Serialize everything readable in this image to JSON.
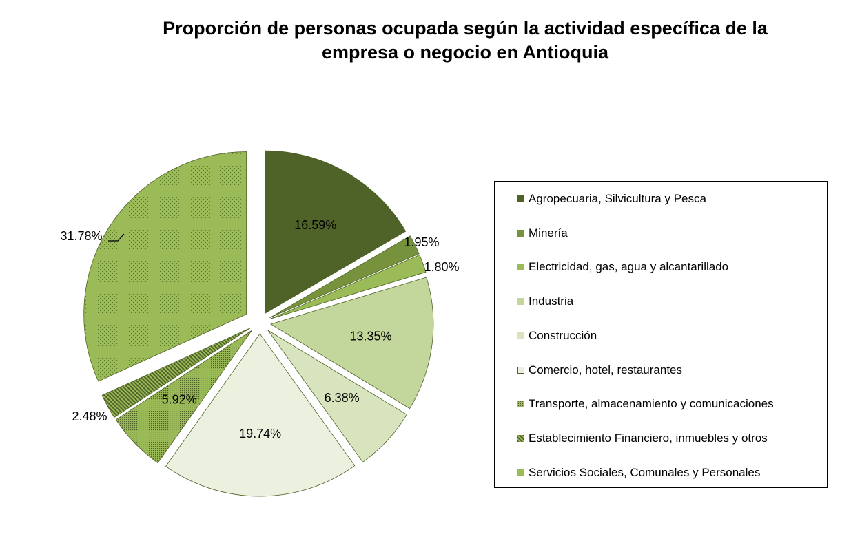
{
  "chart_data": {
    "type": "pie",
    "title": [
      "Proporción de personas ocupada según la actividad específica de la",
      "empresa o negocio en Antioquia"
    ],
    "legend_position": "right",
    "slices": [
      {
        "label": "Agropecuaria, Silvicultura y Pesca",
        "value": 16.59,
        "display": "16.59%",
        "color": "#4f6228",
        "pattern": "solid",
        "label_position": "inside"
      },
      {
        "label": "Minería",
        "value": 1.95,
        "display": "1.95%",
        "color": "#76923c",
        "pattern": "solid",
        "label_position": "outside"
      },
      {
        "label": "Electricidad, gas, agua y alcantarillado",
        "value": 1.8,
        "display": "1.80%",
        "color": "#9bbb59",
        "pattern": "solid",
        "label_position": "outside"
      },
      {
        "label": "Industria",
        "value": 13.35,
        "display": "13.35%",
        "color": "#c3d69b",
        "pattern": "solid",
        "label_position": "inside"
      },
      {
        "label": "Construcción",
        "value": 6.38,
        "display": "6.38%",
        "color": "#d7e4bd",
        "pattern": "solid",
        "label_position": "inside"
      },
      {
        "label": "Comercio, hotel, restaurantes",
        "value": 19.74,
        "display": "19.74%",
        "color": "#ebf1de",
        "pattern": "solid",
        "label_position": "inside"
      },
      {
        "label": "Transporte, almacenamiento y comunicaciones",
        "value": 5.92,
        "display": "5.92%",
        "color": "#9bbb59",
        "pattern": "dots",
        "label_position": "inside"
      },
      {
        "label": "Establecimiento Financiero, inmuebles y otros",
        "value": 2.48,
        "display": "2.48%",
        "color": "#76923c",
        "pattern": "diagonal",
        "label_position": "outside"
      },
      {
        "label": "Servicios Sociales, Comunales y Personales",
        "value": 31.78,
        "display": "31.78%",
        "color": "#9bbb59",
        "pattern": "sparse-dots",
        "label_position": "outside"
      }
    ]
  }
}
